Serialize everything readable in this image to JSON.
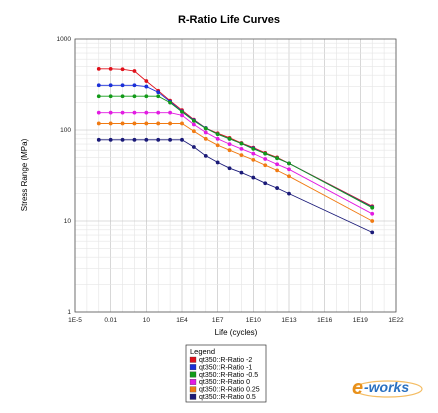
{
  "chart_data": {
    "type": "line",
    "title": "R-Ratio Life Curves",
    "xlabel": "Life (cycles)",
    "ylabel": "Stress Range (MPa)",
    "x_scale": "log",
    "y_scale": "log",
    "xlim": [
      1e-05,
      1e+22
    ],
    "ylim": [
      1,
      1000
    ],
    "grid": true,
    "x_ticks": [
      "1E-5",
      "0.01",
      "10",
      "1E4",
      "1E7",
      "1E10",
      "1E13",
      "1E16",
      "1E19",
      "1E22"
    ],
    "y_ticks": [
      "1",
      "10",
      "100",
      "1000"
    ],
    "x": [
      0.001,
      0.01,
      0.1,
      1,
      10,
      100,
      1000,
      10000,
      100000,
      1000000,
      10000000,
      100000000,
      1000000000,
      10000000000,
      100000000000,
      1000000000000,
      10000000000000,
      1e+20
    ],
    "series": [
      {
        "name": "qt350::R-Ratio -2",
        "color": "#e0101a",
        "values": [
          470,
          470,
          465,
          445,
          345,
          270,
          210,
          165,
          130,
          105,
          92,
          82,
          72,
          64,
          56,
          50,
          43,
          14.5
        ]
      },
      {
        "name": "qt350::R-Ratio -1",
        "color": "#1a2fd8",
        "values": [
          310,
          310,
          310,
          310,
          300,
          260,
          205,
          160,
          128,
          105,
          90,
          80,
          71,
          63,
          55,
          49,
          43,
          14.2
        ]
      },
      {
        "name": "qt350::R-Ratio -0.5",
        "color": "#129a18",
        "values": [
          235,
          235,
          235,
          235,
          235,
          235,
          200,
          158,
          126,
          104,
          90,
          80,
          71,
          62,
          55,
          49,
          43,
          14.0
        ]
      },
      {
        "name": "qt350::R-Ratio 0",
        "color": "#e21be2",
        "values": [
          155,
          155,
          155,
          155,
          155,
          155,
          155,
          145,
          115,
          94,
          80,
          70,
          62,
          55,
          48,
          42,
          37,
          12.0
        ]
      },
      {
        "name": "qt350::R-Ratio 0.25",
        "color": "#f07a12",
        "values": [
          118,
          118,
          118,
          118,
          118,
          118,
          118,
          118,
          97,
          80,
          68,
          60,
          53,
          47,
          41,
          36,
          31,
          10.0
        ]
      },
      {
        "name": "qt350::R-Ratio 0.5",
        "color": "#1a1a78",
        "values": [
          78,
          78,
          78,
          78,
          78,
          78,
          78,
          78,
          65,
          52,
          44,
          38,
          34,
          30,
          26,
          23,
          20,
          7.5
        ]
      }
    ],
    "legend": {
      "title": "Legend",
      "position": "bottom-center"
    }
  },
  "watermark": {
    "prefix": "e",
    "text": "-works"
  }
}
